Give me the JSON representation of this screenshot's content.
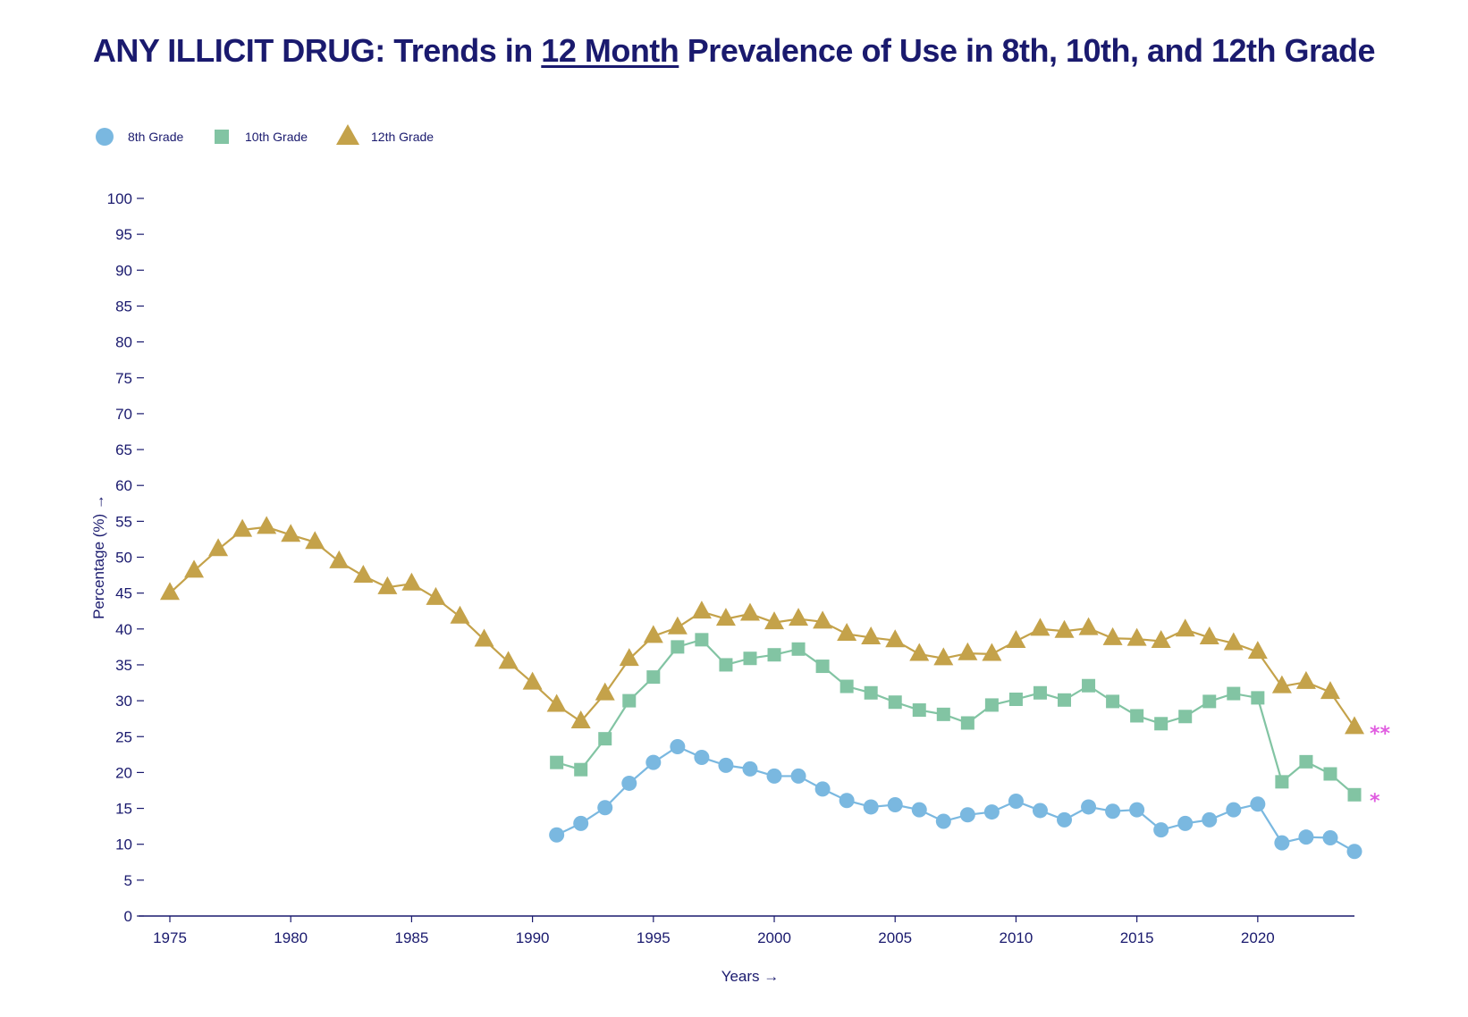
{
  "title": {
    "prefix": "ANY ILLICIT DRUG: Trends in ",
    "underlined": "12 Month",
    "suffix": " Prevalence of Use in 8th, 10th, and 12th Grade"
  },
  "chart_data": {
    "type": "line",
    "title": "ANY ILLICIT DRUG: Trends in 12 Month Prevalence of Use in 8th, 10th, and 12th Grade",
    "xlabel": "Years →",
    "ylabel": "Percentage (%) →",
    "xlim": [
      1975,
      2024
    ],
    "ylim": [
      0,
      100
    ],
    "x_ticks": [
      1975,
      1980,
      1985,
      1990,
      1995,
      2000,
      2005,
      2010,
      2015,
      2020
    ],
    "y_ticks": [
      0,
      5,
      10,
      15,
      20,
      25,
      30,
      35,
      40,
      45,
      50,
      55,
      60,
      65,
      70,
      75,
      80,
      85,
      90,
      95,
      100
    ],
    "grid": false,
    "legend": "top-left",
    "series": [
      {
        "name": "8th Grade",
        "marker": "circle",
        "color": "#7ab8e0",
        "x": [
          1991,
          1992,
          1993,
          1994,
          1995,
          1996,
          1997,
          1998,
          1999,
          2000,
          2001,
          2002,
          2003,
          2004,
          2005,
          2006,
          2007,
          2008,
          2009,
          2010,
          2011,
          2012,
          2013,
          2014,
          2015,
          2016,
          2017,
          2018,
          2019,
          2020,
          2021,
          2022,
          2023,
          2024
        ],
        "values": [
          11.3,
          12.9,
          15.1,
          18.5,
          21.4,
          23.6,
          22.1,
          21.0,
          20.5,
          19.5,
          19.5,
          17.7,
          16.1,
          15.2,
          15.5,
          14.8,
          13.2,
          14.1,
          14.5,
          16.0,
          14.7,
          13.4,
          15.2,
          14.6,
          14.8,
          12.0,
          12.9,
          13.4,
          14.8,
          15.6,
          10.2,
          11.0,
          10.9,
          9.0
        ],
        "note": ""
      },
      {
        "name": "10th Grade",
        "marker": "square",
        "color": "#82c4a3",
        "x": [
          1991,
          1992,
          1993,
          1994,
          1995,
          1996,
          1997,
          1998,
          1999,
          2000,
          2001,
          2002,
          2003,
          2004,
          2005,
          2006,
          2007,
          2008,
          2009,
          2010,
          2011,
          2012,
          2013,
          2014,
          2015,
          2016,
          2017,
          2018,
          2019,
          2020,
          2021,
          2022,
          2023,
          2024
        ],
        "values": [
          21.4,
          20.4,
          24.7,
          30.0,
          33.3,
          37.5,
          38.5,
          35.0,
          35.9,
          36.4,
          37.2,
          34.8,
          32.0,
          31.1,
          29.8,
          28.7,
          28.1,
          26.9,
          29.4,
          30.2,
          31.1,
          30.1,
          32.1,
          29.9,
          27.9,
          26.8,
          27.8,
          29.9,
          31.0,
          30.4,
          18.7,
          21.5,
          19.8,
          16.9
        ],
        "note": "*"
      },
      {
        "name": "12th Grade",
        "marker": "triangle",
        "color": "#c4a24a",
        "x": [
          1975,
          1976,
          1977,
          1978,
          1979,
          1980,
          1981,
          1982,
          1983,
          1984,
          1985,
          1986,
          1987,
          1988,
          1989,
          1990,
          1991,
          1992,
          1993,
          1994,
          1995,
          1996,
          1997,
          1998,
          1999,
          2000,
          2001,
          2002,
          2003,
          2004,
          2005,
          2006,
          2007,
          2008,
          2009,
          2010,
          2011,
          2012,
          2013,
          2014,
          2015,
          2016,
          2017,
          2018,
          2019,
          2020,
          2021,
          2022,
          2023,
          2024
        ],
        "values": [
          45.0,
          48.1,
          51.1,
          53.8,
          54.2,
          53.1,
          52.1,
          49.4,
          47.4,
          45.8,
          46.3,
          44.3,
          41.7,
          38.5,
          35.4,
          32.5,
          29.4,
          27.1,
          31.0,
          35.8,
          39.0,
          40.2,
          42.4,
          41.4,
          42.1,
          40.9,
          41.4,
          41.0,
          39.3,
          38.8,
          38.4,
          36.5,
          35.9,
          36.6,
          36.5,
          38.3,
          40.0,
          39.7,
          40.1,
          38.7,
          38.6,
          38.3,
          39.9,
          38.8,
          38.0,
          36.8,
          32.0,
          32.6,
          31.2,
          26.3
        ],
        "note": "**"
      }
    ]
  }
}
